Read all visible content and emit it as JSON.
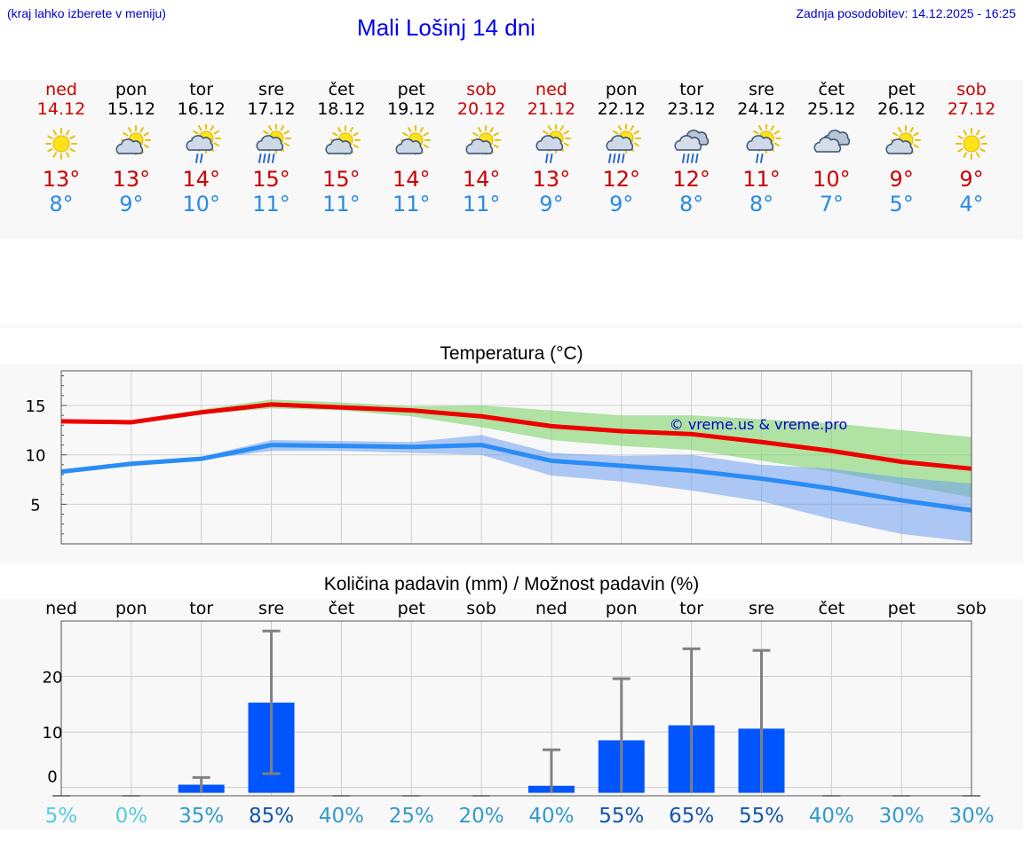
{
  "header": {
    "menu_hint": "(kraj lahko izberete v meniju)",
    "title": "Mali Lošinj 14 dni",
    "last_update": "Zadnja posodobitev: 14.12.2025 - 16:25"
  },
  "colors": {
    "weekend": "#cc0000",
    "tmax": "#cc0000",
    "tmin": "#2a8ae6",
    "max_line": "#ee0000",
    "min_line": "#2a8cf5",
    "bar": "#0055ff",
    "errbar": "#808080",
    "watermark": "#0000cc"
  },
  "days": [
    {
      "name": "ned",
      "date": "14.12",
      "weekend": true,
      "icon": "sunny-icon",
      "tmax": "13°",
      "tmin": "8°"
    },
    {
      "name": "pon",
      "date": "15.12",
      "weekend": false,
      "icon": "partly-cloudy-icon",
      "tmax": "13°",
      "tmin": "9°"
    },
    {
      "name": "tor",
      "date": "16.12",
      "weekend": false,
      "icon": "sun-cloud-rain-icon",
      "tmax": "14°",
      "tmin": "10°"
    },
    {
      "name": "sre",
      "date": "17.12",
      "weekend": false,
      "icon": "sun-cloud-heavy-rain-icon",
      "tmax": "15°",
      "tmin": "11°"
    },
    {
      "name": "čet",
      "date": "18.12",
      "weekend": false,
      "icon": "partly-cloudy-icon",
      "tmax": "15°",
      "tmin": "11°"
    },
    {
      "name": "pet",
      "date": "19.12",
      "weekend": false,
      "icon": "partly-cloudy-icon",
      "tmax": "14°",
      "tmin": "11°"
    },
    {
      "name": "sob",
      "date": "20.12",
      "weekend": true,
      "icon": "partly-cloudy-icon",
      "tmax": "14°",
      "tmin": "11°"
    },
    {
      "name": "ned",
      "date": "21.12",
      "weekend": true,
      "icon": "sun-cloud-rain-icon",
      "tmax": "13°",
      "tmin": "9°"
    },
    {
      "name": "pon",
      "date": "22.12",
      "weekend": false,
      "icon": "sun-cloud-heavy-rain-icon",
      "tmax": "12°",
      "tmin": "9°"
    },
    {
      "name": "tor",
      "date": "23.12",
      "weekend": false,
      "icon": "cloudy-rain-icon",
      "tmax": "12°",
      "tmin": "8°"
    },
    {
      "name": "sre",
      "date": "24.12",
      "weekend": false,
      "icon": "sun-cloud-rain-icon",
      "tmax": "11°",
      "tmin": "8°"
    },
    {
      "name": "čet",
      "date": "25.12",
      "weekend": false,
      "icon": "cloudy-icon",
      "tmax": "10°",
      "tmin": "7°"
    },
    {
      "name": "pet",
      "date": "26.12",
      "weekend": false,
      "icon": "partly-cloudy-icon",
      "tmax": "9°",
      "tmin": "5°"
    },
    {
      "name": "sob",
      "date": "27.12",
      "weekend": true,
      "icon": "sunny-icon",
      "tmax": "9°",
      "tmin": "4°"
    }
  ],
  "chart_data": [
    {
      "type": "line",
      "title": "Temperatura (°C)",
      "xlabel": "",
      "ylabel": "",
      "ylim": [
        1,
        18.5
      ],
      "yticks": [
        5,
        10,
        15
      ],
      "x": [
        0,
        1,
        2,
        3,
        4,
        5,
        6,
        7,
        8,
        9,
        10,
        11,
        12,
        13
      ],
      "series": [
        {
          "name": "max",
          "values": [
            13.4,
            13.3,
            14.3,
            15.1,
            14.8,
            14.5,
            13.9,
            12.9,
            12.4,
            12.1,
            11.3,
            10.4,
            9.3,
            8.6
          ],
          "band_high": [
            13.4,
            13.5,
            14.6,
            15.6,
            15.3,
            14.9,
            15.0,
            14.5,
            14.0,
            14.0,
            13.6,
            13.2,
            12.5,
            11.8
          ],
          "band_low": [
            13.4,
            13.1,
            14.1,
            14.7,
            14.5,
            13.9,
            12.8,
            11.5,
            10.9,
            10.5,
            9.4,
            8.3,
            7.0,
            5.7
          ]
        },
        {
          "name": "min",
          "values": [
            8.3,
            9.1,
            9.6,
            11.0,
            10.9,
            10.8,
            11.0,
            9.4,
            8.9,
            8.4,
            7.6,
            6.6,
            5.4,
            4.4
          ],
          "band_high": [
            8.3,
            9.3,
            9.8,
            11.5,
            11.4,
            11.3,
            12.0,
            10.2,
            9.9,
            10.0,
            9.0,
            8.6,
            7.7,
            7.1
          ],
          "band_low": [
            8.3,
            8.9,
            9.5,
            10.4,
            10.4,
            10.2,
            10.0,
            7.9,
            7.3,
            6.4,
            5.3,
            3.5,
            2.0,
            1.2
          ]
        }
      ],
      "watermark": "© vreme.us & vreme.pro"
    },
    {
      "type": "bar",
      "title": "Količina padavin (mm) / Možnost padavin (%)",
      "categories": [
        "ned",
        "pon",
        "tor",
        "sre",
        "čet",
        "pet",
        "sob",
        "ned",
        "pon",
        "tor",
        "sre",
        "čet",
        "pet",
        "sob"
      ],
      "values": [
        0,
        0,
        0.5,
        15.3,
        0,
        0,
        0,
        0.3,
        8.5,
        11.2,
        10.6,
        0,
        0,
        0
      ],
      "error_high": [
        0,
        0,
        1.8,
        28.2,
        0,
        0,
        0,
        6.8,
        19.6,
        25.0,
        24.7,
        0,
        0,
        0
      ],
      "error_low": [
        0,
        0,
        0,
        2.5,
        0,
        0,
        0,
        0,
        0,
        0,
        0,
        0,
        0,
        0
      ],
      "ylim": [
        -1.5,
        30
      ],
      "yticks": [
        0,
        10,
        20
      ],
      "chance_percent": [
        "5%",
        "0%",
        "35%",
        "85%",
        "40%",
        "25%",
        "20%",
        "40%",
        "55%",
        "65%",
        "55%",
        "40%",
        "30%",
        "30%"
      ],
      "chance_colors": [
        "#55ccdd",
        "#55ccdd",
        "#3399cc",
        "#1155aa",
        "#3399cc",
        "#3399cc",
        "#3399cc",
        "#3399cc",
        "#1155aa",
        "#1155aa",
        "#1155aa",
        "#3399cc",
        "#3399cc",
        "#3399cc"
      ]
    }
  ]
}
